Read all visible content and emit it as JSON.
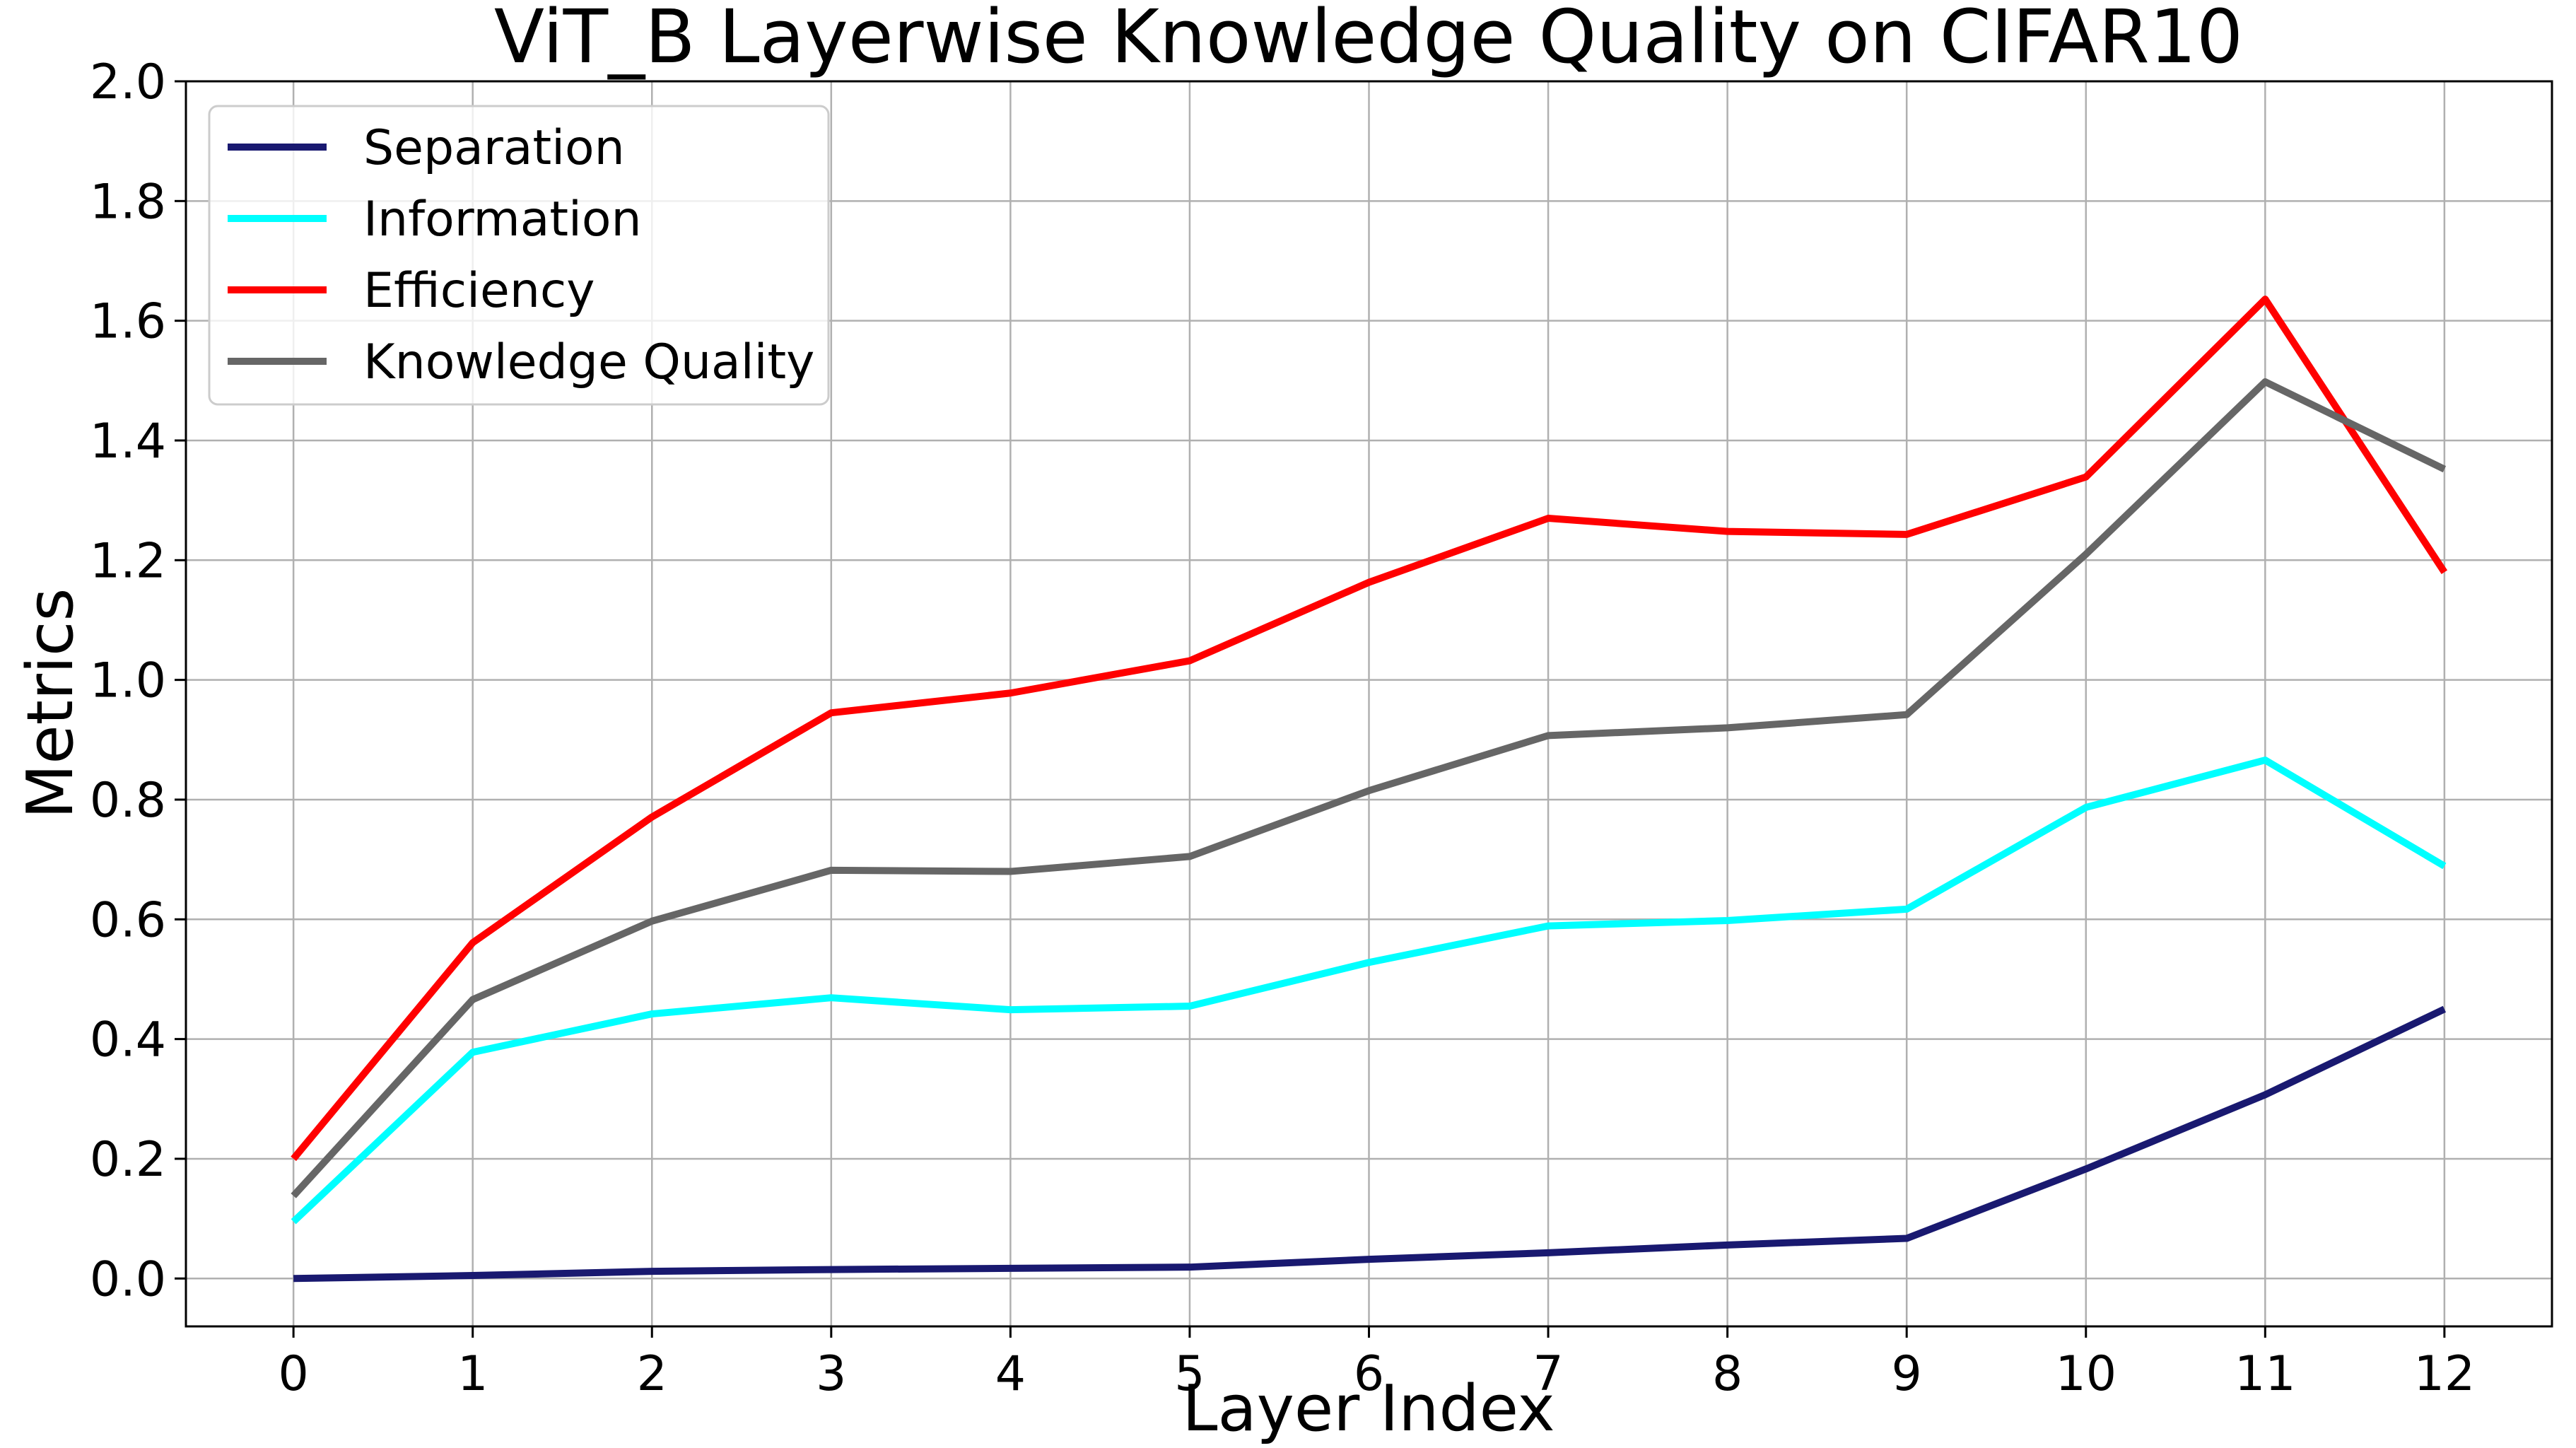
{
  "chart_data": {
    "type": "line",
    "title": "ViT_B Layerwise Knowledge Quality on CIFAR10",
    "xlabel": "Layer Index",
    "ylabel": "Metrics",
    "x": [
      0,
      1,
      2,
      3,
      4,
      5,
      6,
      7,
      8,
      9,
      10,
      11,
      12
    ],
    "x_ticks": [
      "0",
      "1",
      "2",
      "3",
      "4",
      "5",
      "6",
      "7",
      "8",
      "9",
      "10",
      "11",
      "12"
    ],
    "y_ticks": [
      "0.0",
      "0.2",
      "0.4",
      "0.6",
      "0.8",
      "1.0",
      "1.2",
      "1.4",
      "1.6",
      "1.8",
      "2.0"
    ],
    "xlim": [
      -0.6,
      12.6
    ],
    "ylim": [
      -0.08,
      2.0
    ],
    "grid": true,
    "legend_position": "upper-left",
    "series": [
      {
        "name": "Separation",
        "color": "#191970",
        "values": [
          0.0,
          0.005,
          0.012,
          0.015,
          0.017,
          0.019,
          0.032,
          0.043,
          0.056,
          0.067,
          0.183,
          0.307,
          0.45
        ]
      },
      {
        "name": "Information",
        "color": "#00ffff",
        "values": [
          0.095,
          0.378,
          0.442,
          0.469,
          0.449,
          0.455,
          0.528,
          0.589,
          0.598,
          0.617,
          0.787,
          0.866,
          0.689
        ]
      },
      {
        "name": "Efficiency",
        "color": "#ff0000",
        "values": [
          0.2,
          0.561,
          0.771,
          0.945,
          0.978,
          1.032,
          1.163,
          1.27,
          1.248,
          1.243,
          1.339,
          1.636,
          1.18
        ]
      },
      {
        "name": "Knowledge Quality",
        "color": "#666666",
        "values": [
          0.138,
          0.466,
          0.597,
          0.682,
          0.68,
          0.705,
          0.815,
          0.907,
          0.92,
          0.942,
          1.21,
          1.498,
          1.352
        ]
      }
    ]
  }
}
